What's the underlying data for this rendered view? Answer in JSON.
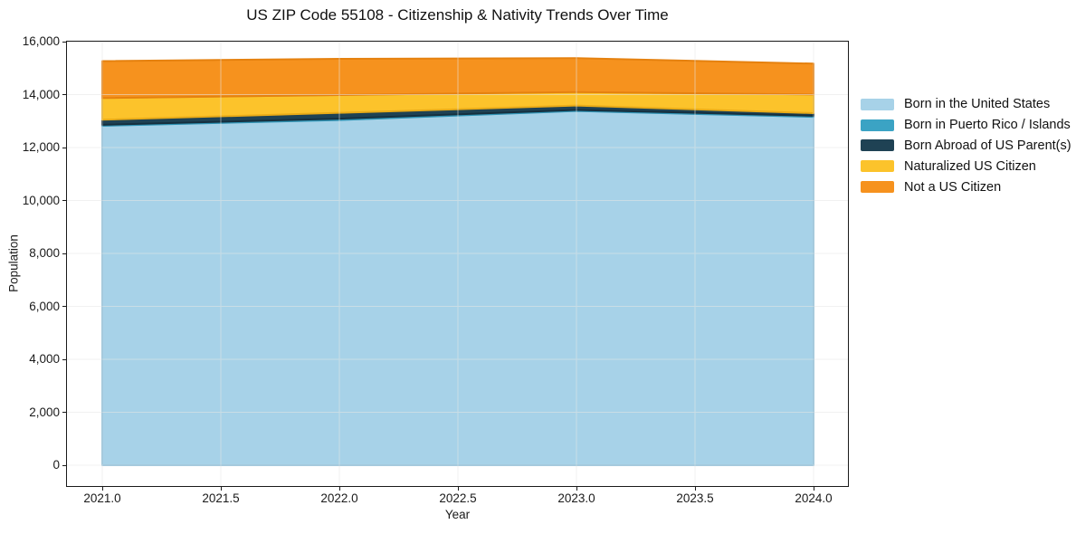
{
  "title": "US ZIP Code 55108 - Citizenship & Nativity Trends Over Time",
  "chart_data": {
    "type": "area",
    "stacked": true,
    "title": "US ZIP Code 55108 - Citizenship & Nativity Trends Over Time",
    "xlabel": "Year",
    "ylabel": "Population",
    "x": [
      2021,
      2022,
      2023,
      2024
    ],
    "x_tick_labels": [
      "2021.0",
      "2021.5",
      "2022.0",
      "2022.5",
      "2023.0",
      "2023.5",
      "2024.0"
    ],
    "y_tick_labels": [
      "0",
      "2,000",
      "4,000",
      "6,000",
      "8,000",
      "10,000",
      "12,000",
      "14,000",
      "16,000"
    ],
    "y_tick_values": [
      0,
      2000,
      4000,
      6000,
      8000,
      10000,
      12000,
      14000,
      16000
    ],
    "ylim": [
      -820,
      16055
    ],
    "grid": true,
    "grid_color": "#e6e6e6",
    "legend_position": "right-outside",
    "series": [
      {
        "name": "Born in the United States",
        "color": "#A7D2E8",
        "edge": "#8FC0DA",
        "values": [
          12820,
          13040,
          13380,
          13160
        ]
      },
      {
        "name": "Born in Puerto Rico / Islands",
        "color": "#3BA3C4",
        "edge": "#2F93B4",
        "values": [
          40,
          50,
          40,
          40
        ]
      },
      {
        "name": "Born Abroad of US Parent(s)",
        "color": "#1F4254",
        "edge": "#16303F",
        "values": [
          190,
          220,
          165,
          100
        ]
      },
      {
        "name": "Naturalized US Citizen",
        "color": "#FCC32B",
        "edge": "#EAAC18",
        "values": [
          820,
          675,
          510,
          705
        ]
      },
      {
        "name": "Not a US Citizen",
        "color": "#F6921E",
        "edge": "#E5810F",
        "values": [
          1395,
          1365,
          1280,
          1165
        ]
      }
    ]
  }
}
